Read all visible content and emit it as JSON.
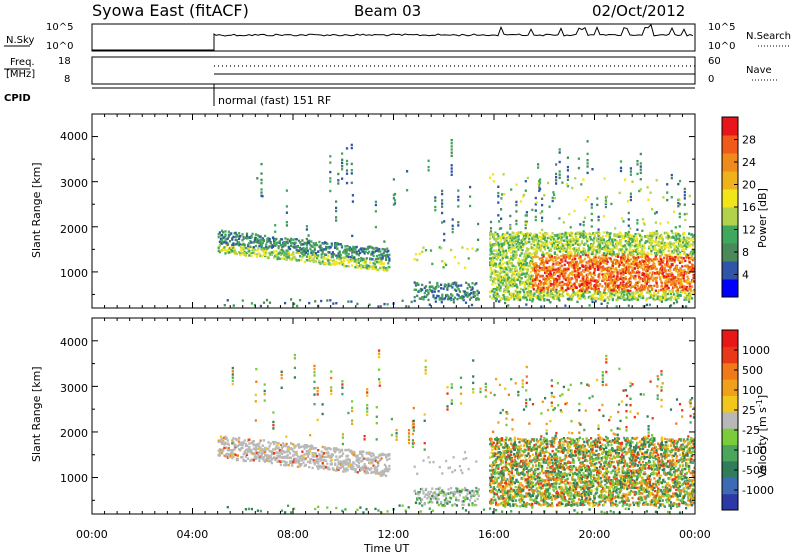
{
  "header": {
    "title": "Syowa East (fitACF)",
    "beam": "Beam 03",
    "date": "02/Oct/2012"
  },
  "strip_panels": {
    "nsky": {
      "left_label": "N.Sky",
      "left_ticks": [
        "10^5",
        "10^0"
      ],
      "right_ticks": [
        "10^5",
        "10^0"
      ],
      "right_label": "N.Search"
    },
    "freq": {
      "left_label_1": "Freq.",
      "left_label_2": "[MHz]",
      "left_ticks": [
        "18",
        "8"
      ],
      "right_ticks": [
        "60",
        "0"
      ],
      "right_label": "Nave"
    },
    "cpid": {
      "label": "CPID",
      "mode_text": "normal (fast) 151 RF",
      "start_hour": 5
    }
  },
  "colors": {
    "power": [
      "#0000ff",
      "#2f54a8",
      "#4a8a5a",
      "#3fa85c",
      "#b2d24c",
      "#f2e61a",
      "#f0b21a",
      "#f08a1a",
      "#f05a1a",
      "#e8161a"
    ],
    "velocity": [
      "#2c3aa8",
      "#3c6ab4",
      "#2f7d5a",
      "#4aa65a",
      "#7acc3a",
      "#b8b8b8",
      "#f2c61a",
      "#f0a01a",
      "#f07a1a",
      "#e83818",
      "#e81818"
    ]
  },
  "chart_data": [
    {
      "type": "heatmap",
      "name": "power",
      "ylabel": "Slant Range [km]",
      "xlabel": "",
      "xlim_hours": [
        0,
        24
      ],
      "ylim_km": [
        200,
        4500
      ],
      "yticks": [
        1000,
        2000,
        3000,
        4000
      ],
      "xticks": [
        "00:00",
        "04:00",
        "08:00",
        "12:00",
        "16:00",
        "20:00",
        "00:00"
      ],
      "colorbar": {
        "label": "Power [dB]",
        "ticks": [
          "4",
          "8",
          "12",
          "16",
          "20",
          "24",
          "28"
        ],
        "range": [
          0,
          30
        ]
      },
      "data_start_hour": 5
    },
    {
      "type": "heatmap",
      "name": "velocity",
      "ylabel": "Slant Range [km]",
      "xlabel": "Time UT",
      "xlim_hours": [
        0,
        24
      ],
      "ylim_km": [
        200,
        4500
      ],
      "yticks": [
        1000,
        2000,
        3000,
        4000
      ],
      "xticks": [
        "00:00",
        "04:00",
        "08:00",
        "12:00",
        "16:00",
        "20:00",
        "00:00"
      ],
      "colorbar": {
        "label": "Velocity [m s-1]",
        "label_main": "Velocity [m s",
        "label_sup": "-1",
        "label_end": "]",
        "ticks": [
          "1000",
          "500",
          "100",
          "25",
          "-25",
          "-100",
          "-500",
          "-1000"
        ]
      },
      "data_start_hour": 5
    }
  ]
}
